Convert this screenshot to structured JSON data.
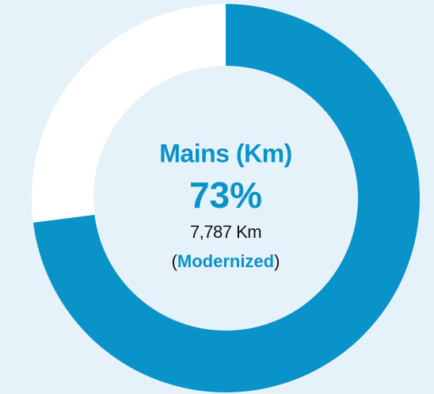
{
  "chart_data": {
    "type": "donut",
    "title": "Mains (Km)",
    "values": [
      73,
      27
    ],
    "value_labels": [
      "73%",
      null
    ],
    "colors": [
      "#0a93c9",
      "#ffffff"
    ],
    "annotation": "7,787 Km",
    "note": {
      "prefix": "(",
      "emphasis": "Modernized",
      "suffix": ")"
    }
  }
}
